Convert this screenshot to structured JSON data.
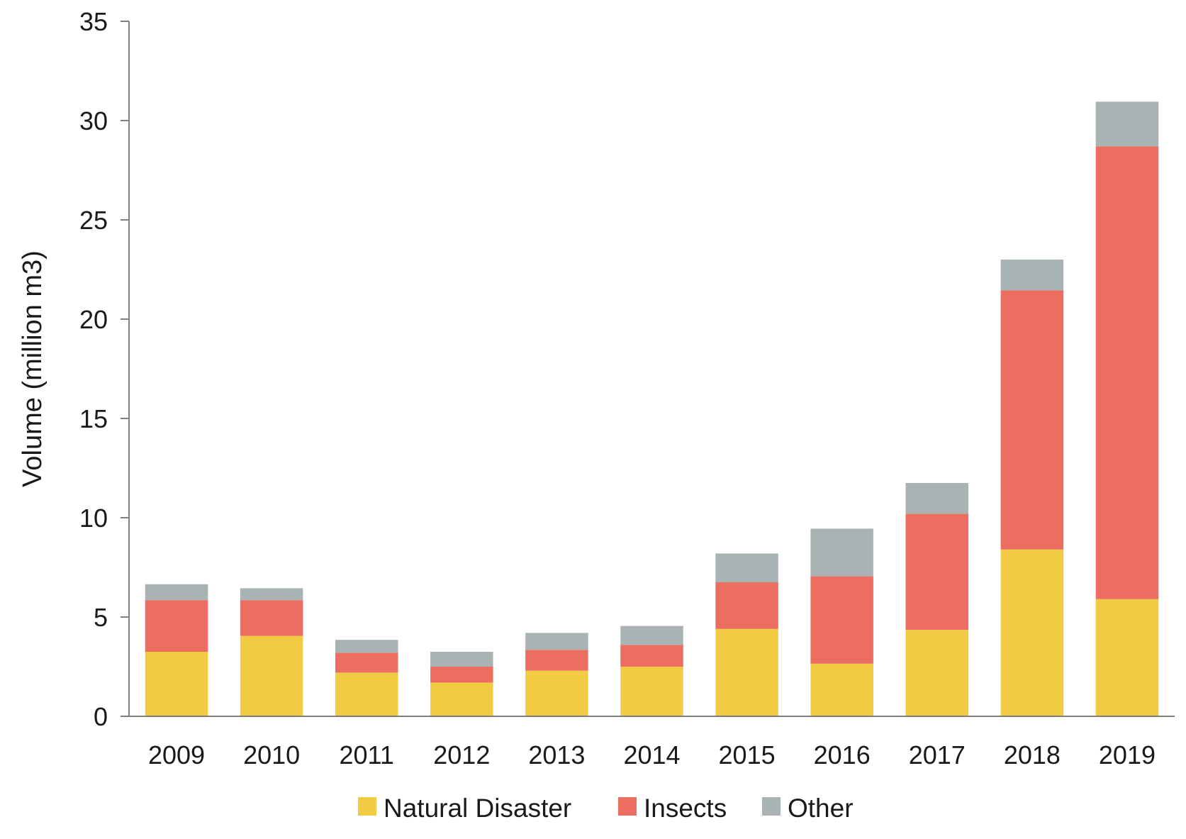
{
  "chart_data": {
    "type": "bar",
    "stacked": true,
    "title": "",
    "xlabel": "",
    "ylabel": "Volume (million m3)",
    "ylim": [
      0,
      35
    ],
    "yticks": [
      0,
      5,
      10,
      15,
      20,
      25,
      30,
      35
    ],
    "categories": [
      "2009",
      "2010",
      "2011",
      "2012",
      "2013",
      "2014",
      "2015",
      "2016",
      "2017",
      "2018",
      "2019"
    ],
    "series": [
      {
        "name": "Natural Disaster",
        "color": "#F2CB44",
        "values": [
          3.25,
          4.05,
          2.2,
          1.7,
          2.3,
          2.5,
          4.4,
          2.65,
          4.35,
          8.4,
          5.9
        ]
      },
      {
        "name": "Insects",
        "color": "#EB6E61",
        "values": [
          2.6,
          1.8,
          1.0,
          0.8,
          1.05,
          1.1,
          2.35,
          4.4,
          5.85,
          13.05,
          22.8
        ]
      },
      {
        "name": "Other",
        "color": "#AAB3B4",
        "values": [
          0.8,
          0.6,
          0.65,
          0.75,
          0.85,
          0.95,
          1.45,
          2.4,
          1.55,
          1.55,
          2.25
        ]
      }
    ],
    "grid": false,
    "legend_position": "bottom"
  }
}
